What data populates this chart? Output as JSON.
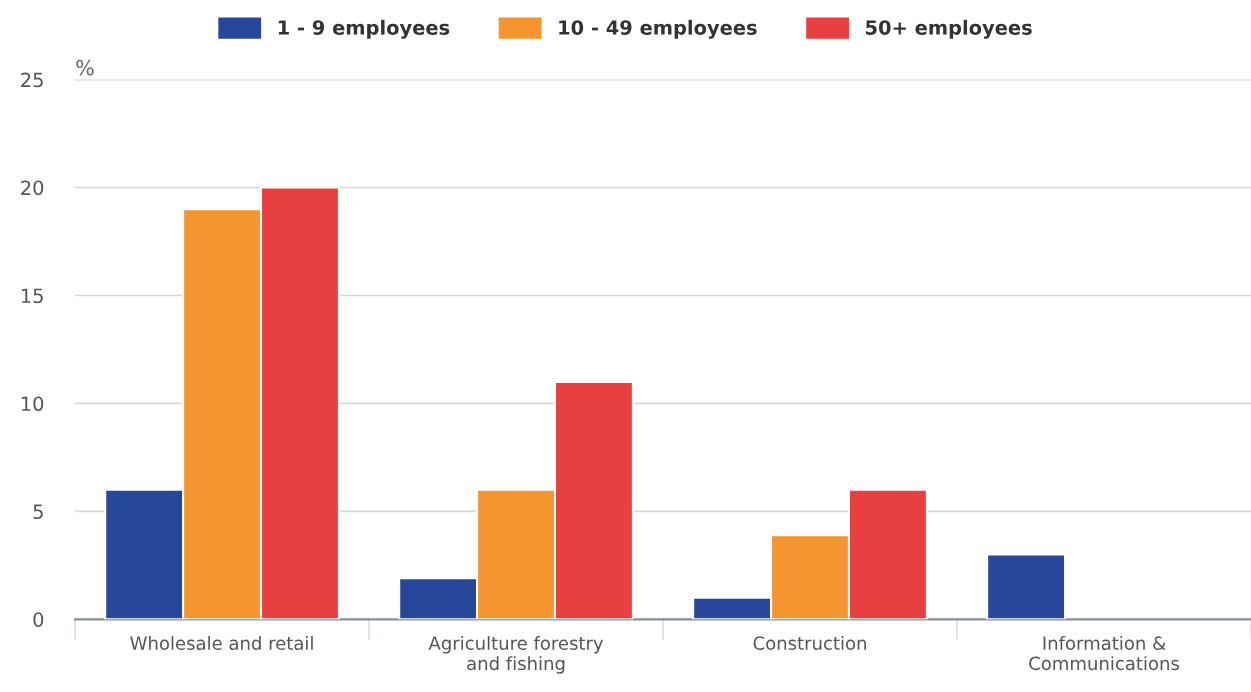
{
  "chart_data": {
    "type": "bar",
    "ylabel": "%",
    "categories": [
      "Wholesale and retail",
      "Agriculture forestry\nand fishing",
      "Construction",
      "Information &\nCommunications"
    ],
    "series": [
      {
        "name": "1 - 9 employees",
        "color": "#27479a",
        "values": [
          6,
          1.9,
          1,
          3
        ]
      },
      {
        "name": "10 - 49 employees",
        "color": "#f4952f",
        "values": [
          19,
          6,
          3.9,
          null
        ]
      },
      {
        "name": "50+ employees",
        "color": "#e84040",
        "values": [
          20,
          11,
          6,
          null
        ]
      }
    ],
    "ylim": [
      0,
      25
    ],
    "yticks": [
      0,
      5,
      10,
      15,
      20,
      25
    ],
    "grid": "y",
    "legend": "top"
  }
}
